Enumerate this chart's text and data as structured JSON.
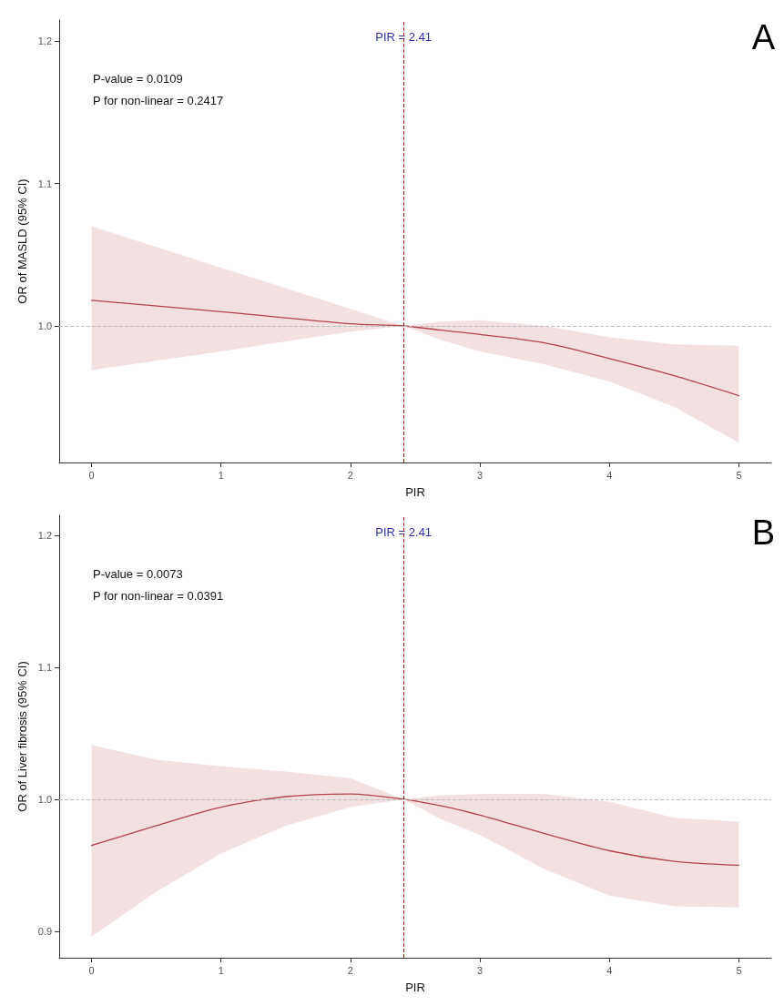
{
  "chart_data": [
    {
      "type": "line",
      "xlabel": "PIR",
      "ylabel": "OR of MASLD (95% CI)",
      "xlim": [
        -0.25,
        5.25
      ],
      "xticks": [
        0,
        1,
        2,
        3,
        4,
        5
      ],
      "ylim": [
        0.904,
        1.215
      ],
      "yticks": [
        {
          "value": 1,
          "label": "1.0"
        },
        1.1,
        1.2
      ],
      "grid": false,
      "marker": "none",
      "line_style": "solid",
      "series": [
        {
          "color": "#b5434a",
          "x": [
            0,
            1,
            2,
            2.41,
            2.7,
            3,
            3.5,
            4,
            4.5,
            5
          ],
          "values": [
            1.018,
            1.01,
            1.0015,
            1.0,
            0.997,
            0.994,
            0.988,
            0.977,
            0.965,
            0.951
          ],
          "upper": [
            1.07,
            1.041,
            1.012,
            1.0,
            1.003,
            1.004,
            1.0,
            0.992,
            0.987,
            0.986
          ],
          "lower": [
            0.969,
            0.982,
            0.996,
            1.0,
            0.99,
            0.982,
            0.973,
            0.961,
            0.943,
            0.918
          ]
        }
      ],
      "ref_lines": [
        {
          "axis": "x",
          "value": 2.41,
          "label": "PIR = 2.41",
          "color": "#b22222",
          "line_style": "dashed"
        },
        {
          "axis": "y",
          "value": 1.0,
          "color": "#bbbbbb",
          "line_style": "dashed"
        }
      ],
      "annotations": [
        "P-value = 0.0109",
        "P for non-linear = 0.2417",
        "A"
      ]
    },
    {
      "type": "line",
      "xlabel": "PIR",
      "ylabel": "OR of Liver fibrosis (95% CI)",
      "xlim": [
        -0.25,
        5.25
      ],
      "xticks": [
        0,
        1,
        2,
        3,
        4,
        5
      ],
      "ylim": [
        0.88,
        1.215
      ],
      "yticks": [
        0.9,
        {
          "value": 1,
          "label": "1.0"
        },
        1.1,
        1.2
      ],
      "grid": false,
      "marker": "none",
      "line_style": "solid",
      "series": [
        {
          "color": "#b5434a",
          "x": [
            0,
            0.5,
            1,
            1.5,
            2,
            2.41,
            2.7,
            3,
            3.5,
            4,
            4.5,
            5
          ],
          "values": [
            0.965,
            0.98,
            0.994,
            1.002,
            1.004,
            1.0,
            0.995,
            0.988,
            0.974,
            0.961,
            0.953,
            0.95
          ],
          "upper": [
            1.041,
            1.03,
            1.025,
            1.021,
            1.016,
            1.0,
            1.003,
            1.004,
            1.004,
            0.998,
            0.986,
            0.983
          ],
          "lower": [
            0.896,
            0.93,
            0.959,
            0.98,
            0.994,
            1.0,
            0.985,
            0.973,
            0.947,
            0.927,
            0.919,
            0.918
          ]
        }
      ],
      "ref_lines": [
        {
          "axis": "x",
          "value": 2.41,
          "label": "PIR = 2.41",
          "color": "#b22222",
          "line_style": "dashed"
        },
        {
          "axis": "y",
          "value": 1.0,
          "color": "#bbbbbb",
          "line_style": "dashed"
        }
      ],
      "annotations": [
        "P-value = 0.0073",
        "P for non-linear = 0.0391",
        "B"
      ]
    }
  ]
}
